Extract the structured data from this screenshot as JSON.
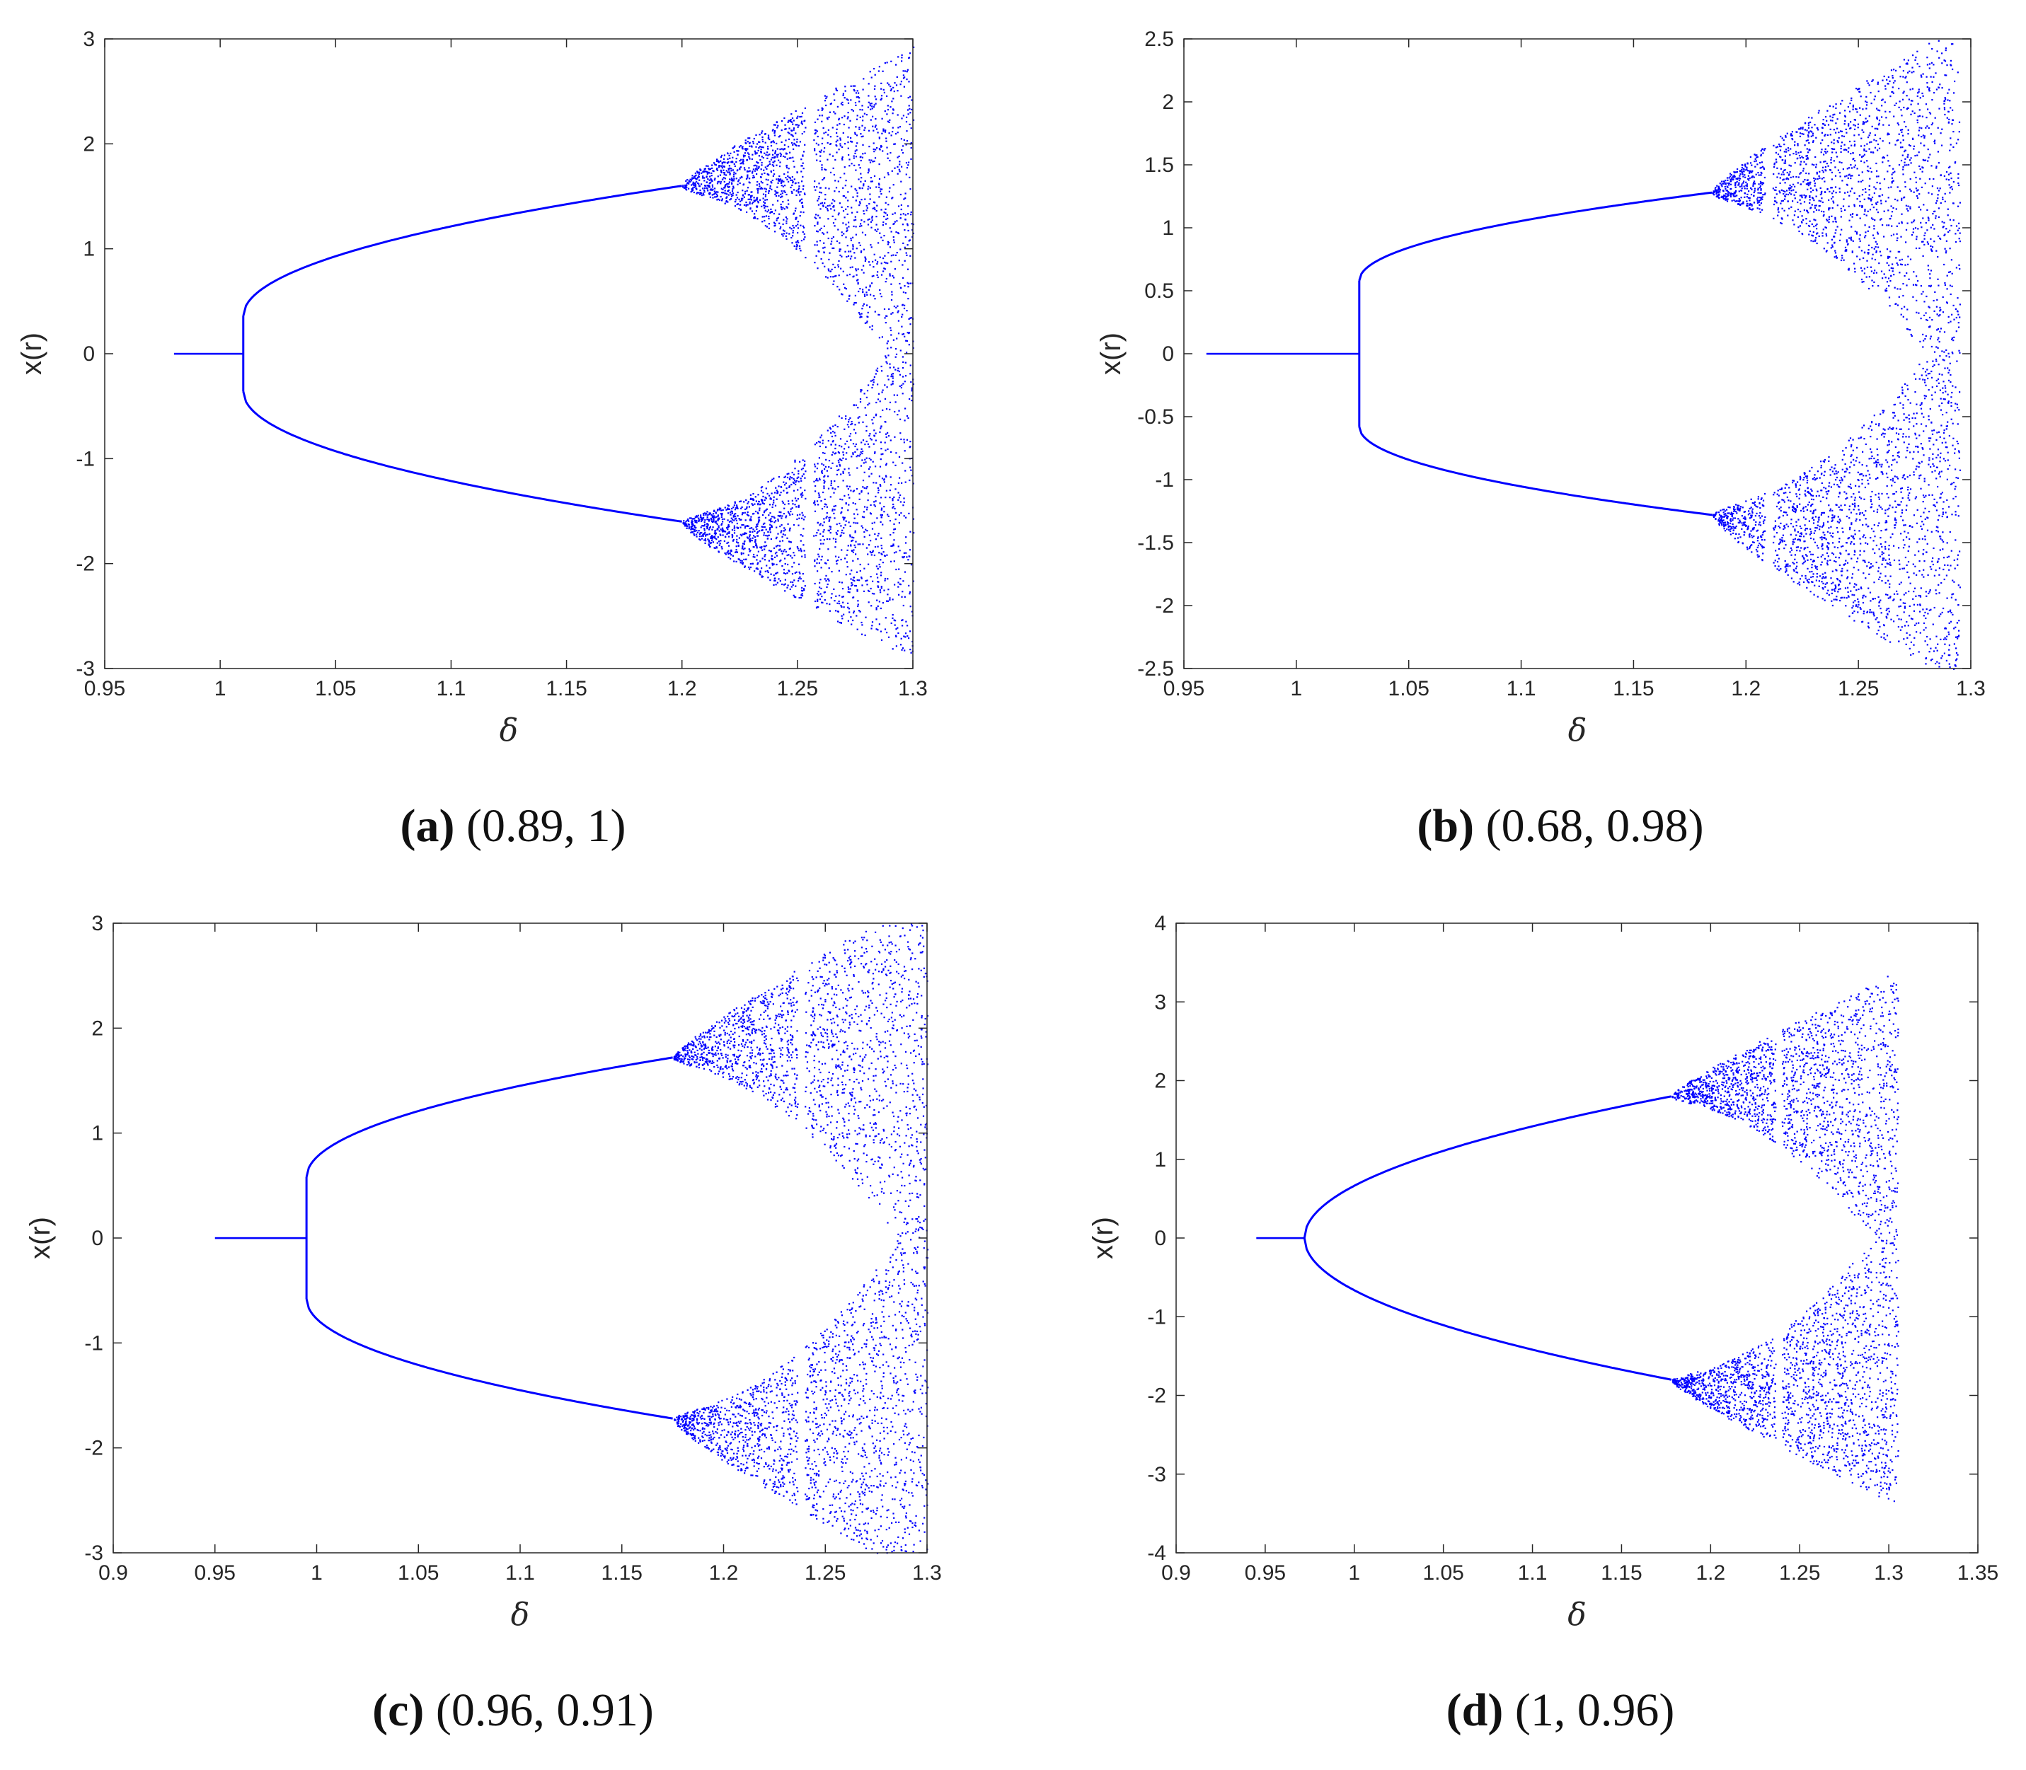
{
  "chart_data": [
    {
      "type": "scatter",
      "panel": "a",
      "caption_letter": "(a)",
      "caption_params": "(0.89, 1)",
      "xlabel": "δ",
      "ylabel": "x(r)",
      "xlim": [
        0.95,
        1.3
      ],
      "ylim": [
        -3,
        3
      ],
      "xticks": [
        "0.95",
        "1",
        "1.05",
        "1.1",
        "1.15",
        "1.2",
        "1.25",
        "1.3"
      ],
      "yticks": [
        "-3",
        "-2",
        "-1",
        "0",
        "1",
        "2",
        "3"
      ],
      "point_color": "#0000ff",
      "bifurcation": {
        "x_start": 0.98,
        "x_pitchfork": 1.01,
        "branch_jump": 0.36,
        "x_chaos": 1.2,
        "y_at_chaos": 1.6,
        "window_x": 1.255,
        "x_end": 1.3,
        "y_max_end": 2.58
      }
    },
    {
      "type": "scatter",
      "panel": "b",
      "caption_letter": "(b)",
      "caption_params": "(0.68, 0.98)",
      "xlabel": "δ",
      "ylabel": "x(r)",
      "xlim": [
        0.95,
        1.3
      ],
      "ylim": [
        -2.5,
        2.5
      ],
      "xticks": [
        "0.95",
        "1",
        "1.05",
        "1.1",
        "1.15",
        "1.2",
        "1.25",
        "1.3"
      ],
      "yticks": [
        "-2.5",
        "-2",
        "-1.5",
        "-1",
        "-0.5",
        "0",
        "0.5",
        "1",
        "1.5",
        "2",
        "2.5"
      ],
      "point_color": "#0000ff",
      "bifurcation": {
        "x_start": 0.96,
        "x_pitchfork": 1.028,
        "branch_jump": 0.58,
        "x_chaos": 1.185,
        "y_at_chaos": 1.28,
        "window_x": 1.21,
        "x_end": 1.295,
        "y_max_end": 2.28
      }
    },
    {
      "type": "scatter",
      "panel": "c",
      "caption_letter": "(c)",
      "caption_params": "(0.96, 0.91)",
      "xlabel": "δ",
      "ylabel": "x(r)",
      "xlim": [
        0.9,
        1.3
      ],
      "ylim": [
        -3,
        3
      ],
      "xticks": [
        "0.9",
        "0.95",
        "1",
        "1.05",
        "1.1",
        "1.15",
        "1.2",
        "1.25",
        "1.3"
      ],
      "yticks": [
        "-3",
        "-2",
        "-1",
        "0",
        "1",
        "2",
        "3"
      ],
      "point_color": "#0000ff",
      "bifurcation": {
        "x_start": 0.95,
        "x_pitchfork": 0.995,
        "branch_jump": 0.58,
        "x_chaos": 1.175,
        "y_at_chaos": 1.72,
        "window_x": 1.238,
        "x_end": 1.3,
        "y_max_end": 2.95
      }
    },
    {
      "type": "scatter",
      "panel": "d",
      "caption_letter": "(d)",
      "caption_params": "(1, 0.96)",
      "xlabel": "δ",
      "ylabel": "x(r)",
      "xlim": [
        0.9,
        1.35
      ],
      "ylim": [
        -4,
        4
      ],
      "xticks": [
        "0.9",
        "0.95",
        "1",
        "1.05",
        "1.1",
        "1.15",
        "1.2",
        "1.25",
        "1.3",
        "1.35"
      ],
      "yticks": [
        "-4",
        "-3",
        "-2",
        "-1",
        "0",
        "1",
        "2",
        "3",
        "4"
      ],
      "point_color": "#0000ff",
      "bifurcation": {
        "x_start": 0.945,
        "x_pitchfork": 0.972,
        "branch_jump": 0.0,
        "x_chaos": 1.178,
        "y_at_chaos": 1.8,
        "window_x": 1.238,
        "x_end": 1.305,
        "y_max_end": 3.05
      }
    }
  ]
}
